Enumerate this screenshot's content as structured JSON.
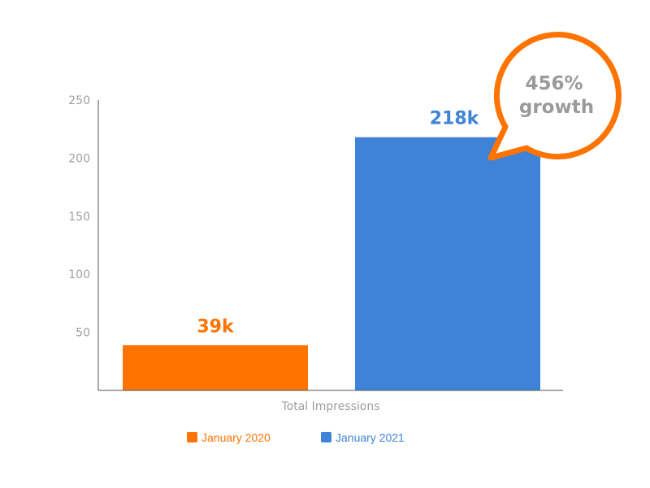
{
  "chart_data": {
    "type": "bar",
    "categories": [
      "Total Impressions"
    ],
    "xlabel": "Total Impressions",
    "ylabel": "",
    "ylim": [
      0,
      250
    ],
    "yticks": [
      50,
      100,
      150,
      200,
      250
    ],
    "grid": false,
    "legend_placement": "bottom",
    "series": [
      {
        "name": "January 2020",
        "values": [
          39
        ],
        "data_label": "39k",
        "color": "#ff7300"
      },
      {
        "name": "January 2021",
        "values": [
          218
        ],
        "data_label": "218k",
        "color": "#3f83d8"
      }
    ],
    "annotation": {
      "line1": "456%",
      "line2": "growth",
      "border_color": "#ff7300",
      "text_color": "#9a9a9a"
    }
  }
}
